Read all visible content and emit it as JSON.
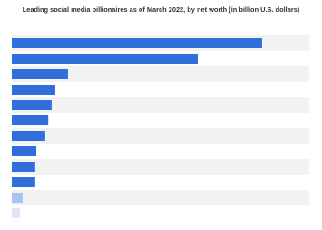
{
  "chart_data": {
    "type": "hbar",
    "title": "Leading social media billionaires as of March 2022, by net worth (in billion U.S. dollars)",
    "categories": [
      null,
      null,
      null,
      null,
      null,
      null,
      null,
      null,
      null,
      null,
      null,
      null
    ],
    "values": [
      67.3,
      50.0,
      15.1,
      11.7,
      10.7,
      9.8,
      9.0,
      6.6,
      6.3,
      6.3,
      2.9,
      2.2
    ],
    "colors": [
      "#2f6fdc",
      "#2f6fdc",
      "#2f6fdc",
      "#2f6fdc",
      "#2f6fdc",
      "#2f6fdc",
      "#2f6fdc",
      "#2f6fdc",
      "#2f6fdc",
      "#2f6fdc",
      "#a9c2ef",
      "#dfe7f7"
    ],
    "xlim": [
      0,
      80
    ],
    "stripes": true
  }
}
